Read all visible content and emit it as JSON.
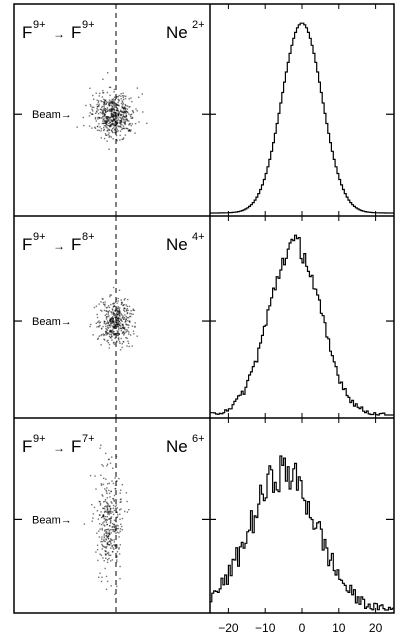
{
  "colors": {
    "ink": "#000000",
    "background": "#ffffff"
  },
  "chart_data": {
    "type": "histogram",
    "x_ticks": [
      -20,
      -10,
      0,
      10,
      20
    ],
    "x_range": [
      -25,
      25
    ],
    "panels": [
      {
        "projectile": "F",
        "projectile_charge": "9+",
        "product": "F",
        "product_charge": "9+",
        "recoil": "Ne",
        "recoil_charge": "2+",
        "beam_label": "Beam→",
        "spot": {
          "center_offset": -0.1,
          "sigma_x": 0.35,
          "sigma_y": 0.35,
          "density": 90
        },
        "histogram": {
          "center": 0,
          "width": 5.5,
          "peak": 1.0,
          "noise": 0.0
        }
      },
      {
        "projectile": "F",
        "projectile_charge": "9+",
        "product": "F",
        "product_charge": "8+",
        "recoil": "Ne",
        "recoil_charge": "4+",
        "beam_label": "Beam→",
        "spot": {
          "center_offset": -0.05,
          "sigma_x": 0.28,
          "sigma_y": 0.4,
          "density": 70
        },
        "histogram": {
          "center": -2,
          "width": 7,
          "peak": 0.95,
          "noise": 0.06
        }
      },
      {
        "projectile": "F",
        "projectile_charge": "9+",
        "product": "F",
        "product_charge": "7+",
        "recoil": "Ne",
        "recoil_charge": "6+",
        "beam_label": "Beam→",
        "spot": {
          "center_offset": -0.25,
          "sigma_x": 0.22,
          "sigma_y": 0.85,
          "density": 55
        },
        "histogram": {
          "center": -5,
          "width": 9,
          "peak": 0.8,
          "noise": 0.12
        }
      }
    ]
  }
}
